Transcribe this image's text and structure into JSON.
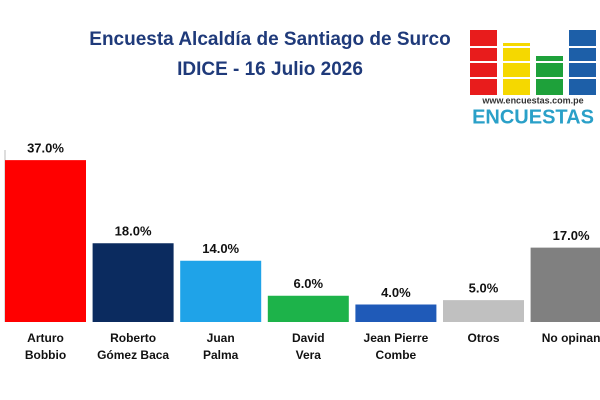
{
  "chart_data": {
    "type": "bar",
    "title": "Encuesta Alcaldía de Santiago de Surco",
    "subtitle": "IDICE - 16 Julio 2026",
    "logo": {
      "url": "www.encuestas.com.pe",
      "name": "ENCUESTAS"
    },
    "categories": [
      "Arturo\nBobbio",
      "Roberto\nGómez Baca",
      "Juan\nPalma",
      "David\nVera",
      "Jean Pierre\nCombe",
      "Otros",
      "No opinan"
    ],
    "values": [
      37,
      18,
      14,
      6,
      4,
      5,
      17
    ],
    "value_labels": [
      "37.0%",
      "18.0%",
      "14.0%",
      "6.0%",
      "4.0%",
      "5.0%",
      "17.0%"
    ],
    "colors": [
      "#ff0000",
      "#0b2b5f",
      "#1fa3e8",
      "#1db34a",
      "#1f5ab8",
      "#c0c0c0",
      "#808080"
    ],
    "ylim": [
      0,
      40
    ]
  }
}
